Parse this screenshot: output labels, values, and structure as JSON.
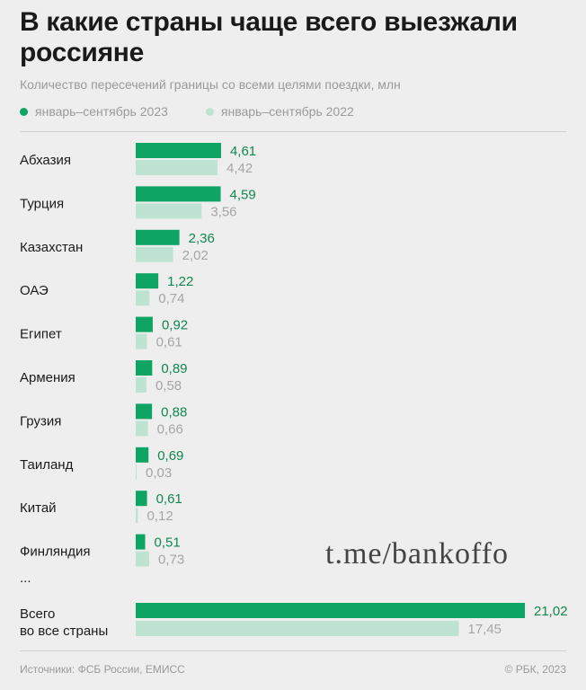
{
  "colors": {
    "primary": "#0ea464",
    "secondary": "#bfe3d2",
    "label_primary": "#11884f",
    "label_secondary": "#a5a5a5"
  },
  "header": {
    "title": "В какие страны чаще всего выезжали россияне",
    "subtitle": "Количество пересечений границы со всеми целями поездки, млн"
  },
  "legend": {
    "series_2023": "январь–сентябрь 2023",
    "series_2022": "январь–сентябрь 2022"
  },
  "chart_data": {
    "type": "bar",
    "orientation": "horizontal",
    "title": "В какие страны чаще всего выезжали россияне",
    "subtitle": "Количество пересечений границы со всеми целями поездки, млн",
    "categories": [
      "Абхазия",
      "Турция",
      "Казахстан",
      "ОАЭ",
      "Египет",
      "Армения",
      "Грузия",
      "Таиланд",
      "Китай",
      "Финляндия"
    ],
    "series": [
      {
        "name": "январь–сентябрь 2023",
        "values": [
          4.61,
          4.59,
          2.36,
          1.22,
          0.92,
          0.89,
          0.88,
          0.69,
          0.61,
          0.51
        ],
        "labels": [
          "4,61",
          "4,59",
          "2,36",
          "1,22",
          "0,92",
          "0,89",
          "0,88",
          "0,69",
          "0,61",
          "0,51"
        ]
      },
      {
        "name": "январь–сентябрь 2022",
        "values": [
          4.42,
          3.56,
          2.02,
          0.74,
          0.61,
          0.58,
          0.66,
          0.03,
          0.12,
          0.73
        ],
        "labels": [
          "4,42",
          "3,56",
          "2,02",
          "0,74",
          "0,61",
          "0,58",
          "0,66",
          "0,03",
          "0,12",
          "0,73"
        ]
      }
    ],
    "ellipsis": "...",
    "total": {
      "label_line1": "Всего",
      "label_line2": "во все страны",
      "values": [
        21.02,
        17.45
      ],
      "labels": [
        "21,02",
        "17,45"
      ]
    },
    "legend_position": "top-left",
    "grid": false
  },
  "footer": {
    "source": "Источники: ФСБ России, ЕМИСС",
    "copyright": "© РБК, 2023"
  },
  "watermark": "t.me/bankoffo"
}
